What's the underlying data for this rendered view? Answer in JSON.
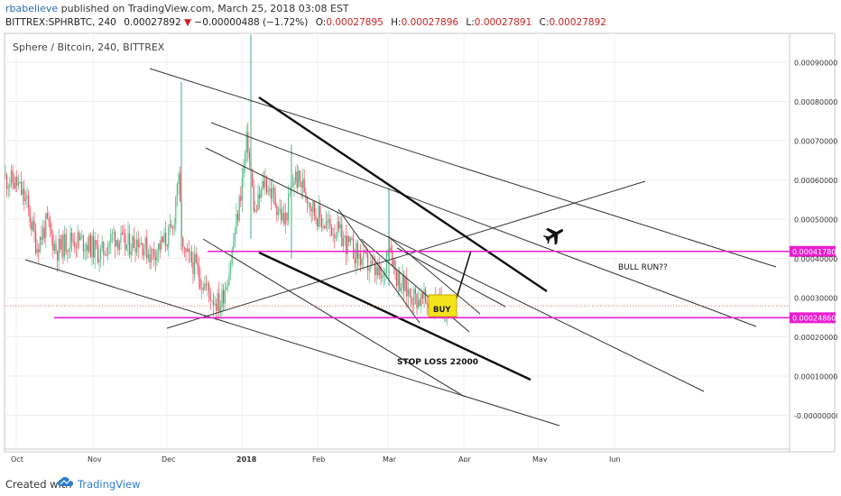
{
  "header": {
    "author": "rbabelieve",
    "published_text": "published on TradingView.com, March 25, 2018 03:08 EST",
    "symbol": "BITTREX:SPHRBTC, 240",
    "last_price": "0.00027892",
    "change_arrow": "▼",
    "change": "−0.00000488 (−1.72%)",
    "open_label": "O:",
    "open": "0.00027895",
    "high_label": "H:",
    "high": "0.00027896",
    "low_label": "L:",
    "low": "0.00027891",
    "close_label": "C:",
    "close": "0.00027892"
  },
  "chart_title": "Sphere / Bitcoin, 240, BITTREX",
  "chart_data": {
    "type": "candlestick",
    "title": "Sphere / Bitcoin, 240, BITTREX",
    "x_tick_labels": [
      "Oct",
      "Nov",
      "Dec",
      "2018",
      "Feb",
      "Mar",
      "Apr",
      "May",
      "Jun"
    ],
    "y_tick_labels": [
      "0.00090000",
      "0.00080000",
      "0.00070000",
      "0.00060000",
      "0.00050000",
      "0.00040000",
      "0.00030000",
      "0.00020000",
      "0.00010000",
      "-0.00000000"
    ],
    "ylim": [
      -2e-05,
      0.00097
    ],
    "price_markers": [
      {
        "label": "0.00041780",
        "value": 0.0004178,
        "color": "#e91ecf"
      },
      {
        "label": "0.00024860",
        "value": 0.0002486,
        "color": "#e91ecf"
      }
    ],
    "last_price_line": 0.00027892,
    "annotations": [
      {
        "text": "BULL RUN??"
      },
      {
        "text": "STOP LOSS 22000"
      },
      {
        "text": "BUY"
      }
    ],
    "series": [
      {
        "values": [
          {
            "x": "2017-09-25",
            "y": 0.00061
          },
          {
            "x": "2017-10-02",
            "y": 0.00059
          },
          {
            "x": "2017-10-06",
            "y": 0.00054
          },
          {
            "x": "2017-10-10",
            "y": 0.00043
          },
          {
            "x": "2017-10-14",
            "y": 0.00049
          },
          {
            "x": "2017-10-18",
            "y": 0.00042
          },
          {
            "x": "2017-10-24",
            "y": 0.00045
          },
          {
            "x": "2017-10-30",
            "y": 0.00044
          },
          {
            "x": "2017-11-05",
            "y": 0.00041
          },
          {
            "x": "2017-11-10",
            "y": 0.00046
          },
          {
            "x": "2017-11-15",
            "y": 0.00043
          },
          {
            "x": "2017-11-20",
            "y": 0.00045
          },
          {
            "x": "2017-11-25",
            "y": 0.00041
          },
          {
            "x": "2017-11-30",
            "y": 0.00044
          },
          {
            "x": "2017-12-04",
            "y": 0.00047
          },
          {
            "x": "2017-12-06",
            "y": 0.00062
          },
          {
            "x": "2017-12-08",
            "y": 0.00041
          },
          {
            "x": "2017-12-12",
            "y": 0.00039
          },
          {
            "x": "2017-12-16",
            "y": 0.00034
          },
          {
            "x": "2017-12-20",
            "y": 0.0003
          },
          {
            "x": "2017-12-23",
            "y": 0.00028
          },
          {
            "x": "2017-12-27",
            "y": 0.00038
          },
          {
            "x": "2017-12-31",
            "y": 0.00055
          },
          {
            "x": "2018-01-03",
            "y": 0.00071
          },
          {
            "x": "2018-01-06",
            "y": 0.00051
          },
          {
            "x": "2018-01-10",
            "y": 0.0006
          },
          {
            "x": "2018-01-14",
            "y": 0.00055
          },
          {
            "x": "2018-01-18",
            "y": 0.00049
          },
          {
            "x": "2018-01-22",
            "y": 0.00061
          },
          {
            "x": "2018-01-26",
            "y": 0.00058
          },
          {
            "x": "2018-01-30",
            "y": 0.00052
          },
          {
            "x": "2018-02-03",
            "y": 0.00049
          },
          {
            "x": "2018-02-08",
            "y": 0.00047
          },
          {
            "x": "2018-02-13",
            "y": 0.00043
          },
          {
            "x": "2018-02-18",
            "y": 0.0004
          },
          {
            "x": "2018-02-23",
            "y": 0.00037
          },
          {
            "x": "2018-02-27",
            "y": 0.00034
          },
          {
            "x": "2018-03-01",
            "y": 0.00046
          },
          {
            "x": "2018-03-04",
            "y": 0.00036
          },
          {
            "x": "2018-03-08",
            "y": 0.00032
          },
          {
            "x": "2018-03-12",
            "y": 0.0003
          },
          {
            "x": "2018-03-16",
            "y": 0.00029
          },
          {
            "x": "2018-03-20",
            "y": 0.00028
          },
          {
            "x": "2018-03-25",
            "y": 0.00027892
          }
        ]
      }
    ]
  },
  "footer": {
    "created_with": "Created with",
    "brand": "TradingView"
  }
}
